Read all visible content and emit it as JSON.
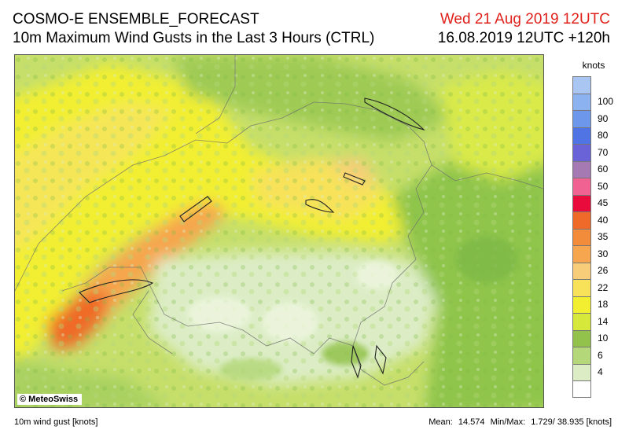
{
  "header": {
    "model": "COSMO-E ENSEMBLE_FORECAST",
    "product": "10m Maximum Wind Gusts in the Last 3 Hours (CTRL)",
    "valid_time": "Wed 21 Aug 2019 12UTC",
    "run_time": "16.08.2019 12UTC +120h"
  },
  "map": {
    "copyright": "© MeteoSwiss",
    "region": "Switzerland and surrounding Alps"
  },
  "legend": {
    "unit": "knots",
    "levels": [
      {
        "label": "",
        "color": "#a9c6f2"
      },
      {
        "label": "100",
        "color": "#8cb3ef"
      },
      {
        "label": "90",
        "color": "#6c97ea"
      },
      {
        "label": "80",
        "color": "#5074e4"
      },
      {
        "label": "70",
        "color": "#6a63d8"
      },
      {
        "label": "60",
        "color": "#a57ab3"
      },
      {
        "label": "50",
        "color": "#f06292"
      },
      {
        "label": "45",
        "color": "#ea0b3d"
      },
      {
        "label": "40",
        "color": "#ef6a28"
      },
      {
        "label": "35",
        "color": "#f38c3a"
      },
      {
        "label": "30",
        "color": "#f6a64e"
      },
      {
        "label": "26",
        "color": "#f8cd79"
      },
      {
        "label": "22",
        "color": "#f7e25a"
      },
      {
        "label": "18",
        "color": "#f2ef31"
      },
      {
        "label": "14",
        "color": "#d6e839"
      },
      {
        "label": "10",
        "color": "#93c24c"
      },
      {
        "label": "6",
        "color": "#b4d879"
      },
      {
        "label": "4",
        "color": "#dcedc6"
      },
      {
        "label": "",
        "color": "#ffffff"
      }
    ]
  },
  "footer": {
    "variable": "10m wind gust [knots]",
    "mean_label": "Mean:",
    "mean_value": "14.574",
    "minmax_label": "Min/Max:",
    "minmax_value": "1.729/ 38.935 [knots]"
  }
}
